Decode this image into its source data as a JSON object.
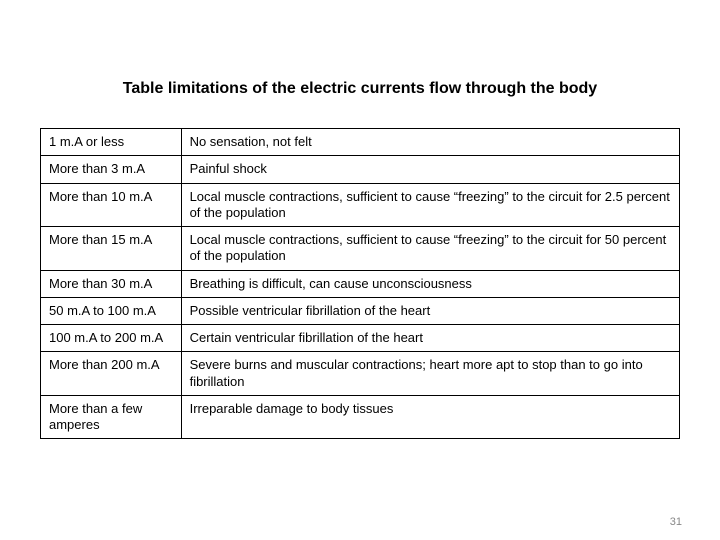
{
  "title": "Table limitations of the electric currents flow through the body",
  "page_number": "31",
  "columns": [
    {
      "key": "current",
      "width_pct": 22
    },
    {
      "key": "effect",
      "width_pct": 78
    }
  ],
  "rows": [
    {
      "current": "1 m.A or less",
      "effect": "No sensation, not felt"
    },
    {
      "current": "More than 3 m.A",
      "effect": "Painful shock"
    },
    {
      "current": "More than 10 m.A",
      "effect": "Local muscle contractions, sufficient to cause “freezing” to the circuit for 2.5 percent of the population"
    },
    {
      "current": "More than 15 m.A",
      "effect": "Local muscle contractions, sufficient to cause “freezing” to the circuit for 50 percent of the population"
    },
    {
      "current": "More than 30 m.A",
      "effect": "Breathing is difficult, can cause unconsciousness"
    },
    {
      "current": "50 m.A to 100 m.A",
      "effect": "Possible ventricular fibrillation of the heart"
    },
    {
      "current": "100 m.A to 200 m.A",
      "effect": "Certain ventricular fibrillation of the heart"
    },
    {
      "current": "More than 200 m.A",
      "effect": "Severe burns and muscular contractions; heart more apt to stop than to go into fibrillation"
    },
    {
      "current": "More than a few amperes",
      "effect": "Irreparable damage to body tissues"
    }
  ],
  "style": {
    "type": "table",
    "background_color": "#ffffff",
    "border_color": "#000000",
    "border_width": 1,
    "title_fontsize": 16,
    "title_weight": "bold",
    "cell_fontsize": 13,
    "cell_padding": "5px 8px"
  }
}
